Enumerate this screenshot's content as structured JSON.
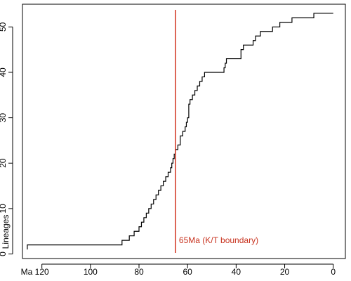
{
  "chart_data": {
    "type": "line",
    "step": true,
    "title": "",
    "xlabel": "Ma",
    "ylabel": "Lineages",
    "xlim": [
      128,
      -5
    ],
    "ylim": [
      -1,
      55
    ],
    "x_reversed": true,
    "grid": false,
    "x_ticks": [
      120,
      100,
      80,
      60,
      40,
      20,
      0
    ],
    "y_ticks": [
      0,
      10,
      20,
      30,
      40,
      50
    ],
    "series": [
      {
        "x": [
          126,
          87,
          84,
          82,
          80,
          79,
          78,
          77,
          76,
          75,
          74,
          73,
          72,
          71,
          70,
          69,
          68,
          67,
          66.5,
          66,
          65.5,
          65,
          64,
          63,
          62,
          61,
          60.5,
          60,
          59.5,
          59,
          58,
          57,
          56,
          55,
          54,
          53,
          52,
          50,
          49,
          45,
          44.5,
          44,
          38,
          37,
          36,
          33,
          32,
          31,
          30,
          29,
          25,
          22,
          17,
          8,
          0
        ],
        "y": [
          2,
          3,
          4,
          5,
          6,
          7,
          8,
          9,
          10,
          11,
          12,
          13,
          14,
          15,
          16,
          17,
          18,
          19,
          20,
          21,
          22,
          23,
          24,
          26,
          27,
          28,
          29,
          30,
          33,
          34,
          35,
          36,
          37,
          38,
          39,
          40,
          40,
          40,
          40,
          41,
          42,
          43,
          45,
          46,
          46,
          47,
          48,
          48,
          49,
          49,
          50,
          51,
          52,
          53,
          53
        ]
      }
    ],
    "annotations": [
      {
        "x": 65,
        "label": "65Ma (K/T boundary)",
        "color": "#d2331f"
      }
    ]
  }
}
